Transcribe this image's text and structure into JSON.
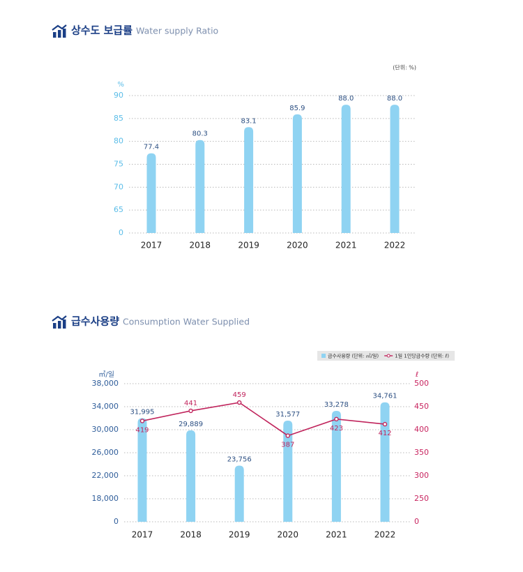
{
  "chart_data": [
    {
      "type": "bar",
      "title": "상수도 보급률",
      "subtitle": "Water supply Ratio",
      "unit_note": "(단위: %)",
      "ylabel": "%",
      "categories": [
        "2017",
        "2018",
        "2019",
        "2020",
        "2021",
        "2022"
      ],
      "values": [
        77.4,
        80.3,
        83.1,
        85.9,
        88.0,
        88.0
      ],
      "value_labels": [
        "77.4",
        "80.3",
        "83.1",
        "85.9",
        "88.0",
        "88.0"
      ],
      "color": "#8fd3f2",
      "ylim": [
        0,
        90
      ],
      "yticks": [
        0,
        65,
        70,
        75,
        80,
        85,
        90
      ],
      "grid": true
    },
    {
      "type": "bar_line",
      "title": "급수사용량",
      "subtitle": "Consumption Water Supplied",
      "ylabel": "㎥/일",
      "y2label": "ℓ",
      "categories": [
        "2017",
        "2018",
        "2019",
        "2020",
        "2021",
        "2022"
      ],
      "series": [
        {
          "name": "급수사용량 (단위: ㎥/일)",
          "type": "bar",
          "color": "#8fd3f2",
          "values": [
            31995,
            29889,
            23756,
            31577,
            33278,
            34761
          ],
          "value_labels": [
            "31,995",
            "29,889",
            "23,756",
            "31,577",
            "33,278",
            "34,761"
          ]
        },
        {
          "name": "1일 1인당급수량 (단위: ℓ)",
          "type": "line",
          "axis": "y2",
          "color": "#c0245c",
          "values": [
            419,
            441,
            459,
            387,
            423,
            412
          ]
        }
      ],
      "ylim": [
        0,
        38000
      ],
      "yticks": [
        0,
        {
          "value": 18000,
          "label": "18,000"
        },
        {
          "value": 22000,
          "label": "22,000"
        },
        {
          "value": 26000,
          "label": "26,000"
        },
        {
          "value": 30000,
          "label": "30,000"
        },
        {
          "value": 34000,
          "label": "34,000"
        },
        {
          "value": 38000,
          "label": "38,000"
        }
      ],
      "y2lim": [
        0,
        500
      ],
      "y2ticks": [
        0,
        250,
        300,
        350,
        400,
        450,
        500
      ],
      "grid": true,
      "legend": "top-right"
    }
  ]
}
